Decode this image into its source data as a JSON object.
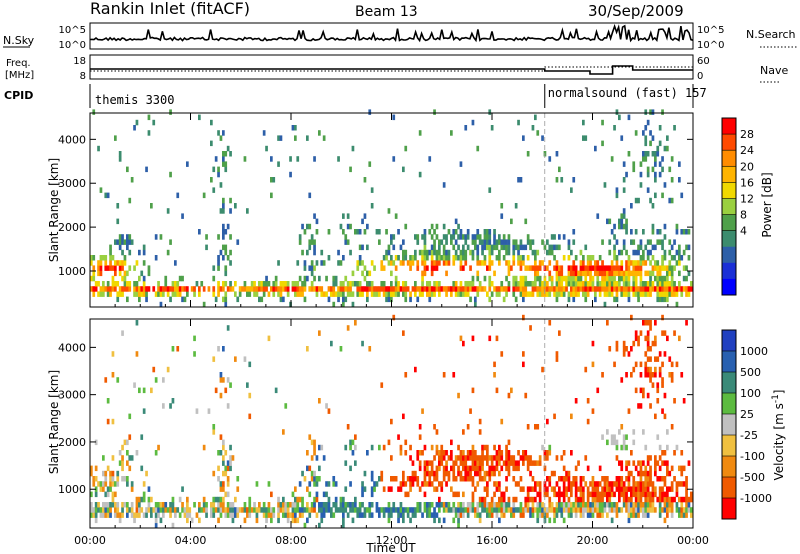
{
  "header": {
    "station": "Rankin Inlet (fitACF)",
    "beam": "Beam 13",
    "date": "30/Sep/2009"
  },
  "top_panels": {
    "nsky_label": "N.Sky",
    "nsky_ticks": [
      "10^5",
      "10^0"
    ],
    "nsearch_label": "N.Search",
    "nsearch_ticks": [
      "10^5",
      "10^0"
    ],
    "freq_label_1": "Freq.",
    "freq_label_2": "[MHz]",
    "freq_ticks": [
      "18",
      "8"
    ],
    "nave_label": "Nave",
    "nave_ticks": [
      "60",
      "0"
    ],
    "cpid_label": "CPID",
    "cpid_segments": [
      {
        "label": "themis 3300",
        "start_hour": 0
      },
      {
        "label": "normalsound (fast) 157",
        "start_hour": 18.1
      }
    ]
  },
  "chart_data": [
    {
      "type": "heatmap",
      "name": "power",
      "xlabel": "",
      "ylabel": "Slant Range [km]",
      "x_range_hours": [
        0,
        24
      ],
      "ylim": [
        180,
        4600
      ],
      "yticks": [
        1000,
        2000,
        3000,
        4000
      ],
      "colorbar": {
        "label": "Power [dB]",
        "ticks": [
          "28",
          "24",
          "20",
          "16",
          "12",
          "8",
          "4"
        ],
        "colors": [
          "#ff0000",
          "#ff4a00",
          "#ff8c00",
          "#ffb400",
          "#f0d800",
          "#9ad040",
          "#4fa04a",
          "#3c8c6e",
          "#2d5fa8",
          "#1a2fd6",
          "#0000ff"
        ]
      }
    },
    {
      "type": "heatmap",
      "name": "velocity",
      "xlabel": "Time UT",
      "ylabel": "Slant Range [km]",
      "x_range_hours": [
        0,
        24
      ],
      "ylim": [
        180,
        4600
      ],
      "yticks": [
        1000,
        2000,
        3000,
        4000
      ],
      "xticks": [
        "00:00",
        "04:00",
        "08:00",
        "12:00",
        "16:00",
        "20:00",
        "00:00"
      ],
      "colorbar": {
        "label": "Velocity [m s-1]",
        "ticks": [
          "1000",
          "500",
          "100",
          "25",
          "-25",
          "-100",
          "-500",
          "-1000"
        ],
        "colors": [
          "#2040c0",
          "#2860b0",
          "#3a8a78",
          "#5cbb40",
          "#c0c0c0",
          "#f0c040",
          "#f08a10",
          "#f05a00",
          "#ff0000"
        ]
      }
    }
  ]
}
